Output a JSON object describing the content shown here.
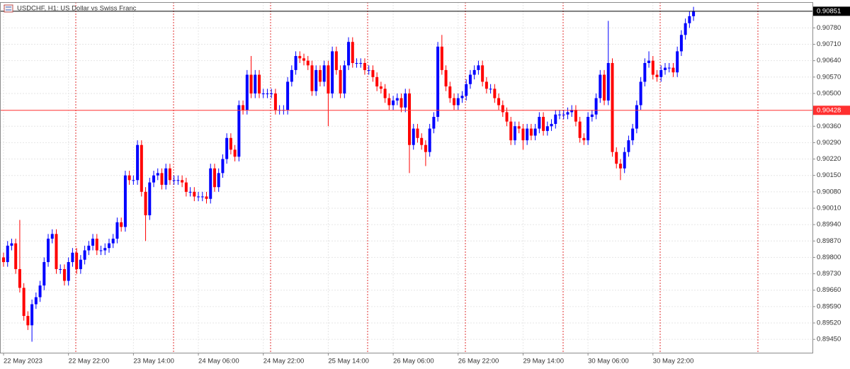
{
  "chart_data": {
    "type": "candlestick",
    "title": "USDCHF, H1:  US Dollar vs Swiss Franc",
    "categories": [
      "22 May 2023",
      null,
      null,
      null,
      null,
      null,
      null,
      null,
      null,
      null,
      null,
      null,
      null,
      null,
      null,
      null,
      "22 May 22:00",
      null,
      null,
      null,
      null,
      null,
      null,
      null,
      null,
      null,
      null,
      null,
      null,
      null,
      null,
      null,
      "23 May 14:00",
      null,
      null,
      null,
      null,
      null,
      null,
      null,
      null,
      null,
      null,
      null,
      null,
      null,
      null,
      null,
      "24 May 06:00",
      null,
      null,
      null,
      null,
      null,
      null,
      null,
      null,
      null,
      null,
      null,
      null,
      null,
      null,
      null,
      "24 May 22:00",
      null,
      null,
      null,
      null,
      null,
      null,
      null,
      null,
      null,
      null,
      null,
      null,
      null,
      null,
      null,
      "25 May 14:00",
      null,
      null,
      null,
      null,
      null,
      null,
      null,
      null,
      null,
      null,
      null,
      null,
      null,
      null,
      null,
      "26 May 06:00",
      null,
      null,
      null,
      null,
      null,
      null,
      null,
      null,
      null,
      null,
      null,
      null,
      null,
      null,
      null,
      "26 May 22:00",
      null,
      null,
      null,
      null,
      null,
      null,
      null,
      null,
      null,
      null,
      null,
      null,
      null,
      null,
      null,
      "29 May 14:00",
      null,
      null,
      null,
      null,
      null,
      null,
      null,
      null,
      null,
      null,
      null,
      null,
      null,
      null,
      null,
      "30 May 06:00",
      null,
      null,
      null,
      null,
      null,
      null,
      null,
      null,
      null,
      null,
      null,
      null,
      null,
      null,
      null,
      "30 May 22:00",
      null,
      null,
      null,
      null,
      null,
      null,
      null,
      null,
      null,
      null
    ],
    "open": [
      0.898,
      0.8978,
      0.8985,
      0.8986,
      0.8975,
      0.8967,
      0.8955,
      0.8951,
      0.896,
      0.8963,
      0.8968,
      0.8978,
      0.8988,
      0.899,
      0.8975,
      0.8975,
      0.897,
      0.8978,
      0.8982,
      0.8975,
      0.8979,
      0.8983,
      0.8985,
      0.8988,
      0.8983,
      0.8983,
      0.8984,
      0.8986,
      0.8988,
      0.8995,
      0.8993,
      0.9015,
      0.9013,
      0.9013,
      0.9028,
      0.9008,
      0.8998,
      0.9012,
      0.9015,
      0.9016,
      0.9011,
      0.9018,
      0.9013,
      0.9013,
      0.9013,
      0.9012,
      0.9008,
      0.9008,
      0.9006,
      0.9006,
      0.9006,
      0.9005,
      0.9018,
      0.901,
      0.9016,
      0.9022,
      0.9031,
      0.9026,
      0.9023,
      0.9045,
      0.9043,
      0.9058,
      0.905,
      0.9058,
      0.905,
      0.905,
      0.905,
      0.905,
      0.9043,
      0.9043,
      0.9043,
      0.9055,
      0.906,
      0.9066,
      0.9065,
      0.9064,
      0.9062,
      0.9051,
      0.906,
      0.9055,
      0.9062,
      0.905,
      0.9068,
      0.906,
      0.905,
      0.9062,
      0.9072,
      0.9063,
      0.9063,
      0.9063,
      0.906,
      0.906,
      0.9057,
      0.9053,
      0.9052,
      0.9048,
      0.9045,
      0.9047,
      0.9048,
      0.9044,
      0.905,
      0.9028,
      0.9035,
      0.9031,
      0.9028,
      0.9025,
      0.9035,
      0.904,
      0.907,
      0.906,
      0.9053,
      0.9048,
      0.9045,
      0.9048,
      0.9049,
      0.9054,
      0.9058,
      0.906,
      0.9062,
      0.9055,
      0.9052,
      0.9052,
      0.9048,
      0.9045,
      0.9042,
      0.9038,
      0.903,
      0.9036,
      0.9035,
      0.903,
      0.9035,
      0.9032,
      0.9035,
      0.904,
      0.9034,
      0.9036,
      0.9037,
      0.9041,
      0.9041,
      0.9041,
      0.9042,
      0.9043,
      0.9038,
      0.9031,
      0.903,
      0.904,
      0.9041,
      0.9048,
      0.9058,
      0.9047,
      0.9063,
      0.9025,
      0.902,
      0.9018,
      0.9025,
      0.903,
      0.9035,
      0.9045,
      0.9055,
      0.9063,
      0.9064,
      0.9058,
      0.9057,
      0.906,
      0.9061,
      0.9061,
      0.9059,
      0.9068,
      0.9075,
      0.908,
      0.9083
    ],
    "high": [
      0.8982,
      0.8987,
      0.8988,
      0.8988,
      0.8996,
      0.8969,
      0.8957,
      0.8962,
      0.8965,
      0.897,
      0.898,
      0.899,
      0.8992,
      0.8992,
      0.8977,
      0.8977,
      0.898,
      0.8984,
      0.8984,
      0.8981,
      0.8985,
      0.8987,
      0.899,
      0.899,
      0.8985,
      0.8986,
      0.8988,
      0.899,
      0.8997,
      0.8997,
      0.9017,
      0.9017,
      0.9015,
      0.903,
      0.903,
      0.901,
      0.9014,
      0.9017,
      0.9018,
      0.9018,
      0.902,
      0.902,
      0.9015,
      0.9015,
      0.9015,
      0.9014,
      0.901,
      0.901,
      0.9008,
      0.9008,
      0.9008,
      0.902,
      0.902,
      0.9018,
      0.9024,
      0.9033,
      0.9033,
      0.9028,
      0.9047,
      0.9047,
      0.906,
      0.9066,
      0.906,
      0.906,
      0.9052,
      0.9052,
      0.9052,
      0.9052,
      0.9045,
      0.9045,
      0.9057,
      0.9062,
      0.9068,
      0.9068,
      0.9067,
      0.9066,
      0.9064,
      0.9062,
      0.9062,
      0.9064,
      0.9064,
      0.907,
      0.907,
      0.9062,
      0.9064,
      0.9074,
      0.9074,
      0.9065,
      0.9065,
      0.9065,
      0.9062,
      0.9062,
      0.9059,
      0.9055,
      0.9054,
      0.905,
      0.9049,
      0.905,
      0.905,
      0.9052,
      0.9052,
      0.9037,
      0.9037,
      0.9033,
      0.903,
      0.9037,
      0.9042,
      0.9072,
      0.9075,
      0.9062,
      0.9055,
      0.905,
      0.905,
      0.9051,
      0.9056,
      0.906,
      0.9062,
      0.9064,
      0.9064,
      0.9057,
      0.9054,
      0.9054,
      0.905,
      0.9047,
      0.9044,
      0.904,
      0.9038,
      0.9038,
      0.9037,
      0.9037,
      0.9037,
      0.9037,
      0.9042,
      0.9042,
      0.9038,
      0.9039,
      0.9043,
      0.9043,
      0.9043,
      0.9044,
      0.9045,
      0.9045,
      0.904,
      0.9033,
      0.9042,
      0.9043,
      0.905,
      0.906,
      0.906,
      0.9081,
      0.9065,
      0.9027,
      0.9022,
      0.9027,
      0.9032,
      0.9037,
      0.9047,
      0.9057,
      0.9065,
      0.9068,
      0.9066,
      0.906,
      0.9062,
      0.9063,
      0.9063,
      0.9063,
      0.907,
      0.9077,
      0.9082,
      0.9085,
      0.9087
    ],
    "low": [
      0.8976,
      0.8976,
      0.8983,
      0.8973,
      0.8965,
      0.8953,
      0.8949,
      0.8944,
      0.8958,
      0.8961,
      0.8966,
      0.8976,
      0.8986,
      0.8973,
      0.8973,
      0.8968,
      0.8968,
      0.8976,
      0.8973,
      0.8973,
      0.8977,
      0.8981,
      0.8983,
      0.8981,
      0.8981,
      0.8981,
      0.8982,
      0.8984,
      0.8986,
      0.8991,
      0.8991,
      0.9011,
      0.9011,
      0.9011,
      0.9006,
      0.8987,
      0.8996,
      0.901,
      0.9013,
      0.9009,
      0.9009,
      0.9011,
      0.9011,
      0.9011,
      0.901,
      0.9006,
      0.9006,
      0.9004,
      0.9004,
      0.9004,
      0.9003,
      0.9003,
      0.9008,
      0.9008,
      0.9014,
      0.902,
      0.9024,
      0.9021,
      0.9021,
      0.9041,
      0.9041,
      0.9048,
      0.9048,
      0.9048,
      0.9048,
      0.9048,
      0.9048,
      0.9041,
      0.9041,
      0.9041,
      0.9041,
      0.9053,
      0.9058,
      0.9063,
      0.9062,
      0.906,
      0.9049,
      0.9049,
      0.9053,
      0.9053,
      0.9036,
      0.9048,
      0.9058,
      0.9048,
      0.9048,
      0.906,
      0.9061,
      0.9061,
      0.9061,
      0.9058,
      0.9058,
      0.9055,
      0.9051,
      0.905,
      0.9046,
      0.9043,
      0.9043,
      0.9045,
      0.9042,
      0.9042,
      0.9016,
      0.9026,
      0.9029,
      0.9026,
      0.9019,
      0.9023,
      0.9033,
      0.9038,
      0.9058,
      0.9051,
      0.9046,
      0.9043,
      0.9043,
      0.9046,
      0.9047,
      0.9052,
      0.9056,
      0.9058,
      0.9053,
      0.905,
      0.905,
      0.9046,
      0.9043,
      0.904,
      0.9036,
      0.9028,
      0.9028,
      0.9033,
      0.9026,
      0.9028,
      0.903,
      0.903,
      0.9033,
      0.9032,
      0.9032,
      0.9034,
      0.9035,
      0.9039,
      0.9039,
      0.9039,
      0.904,
      0.9036,
      0.9029,
      0.9028,
      0.9028,
      0.9038,
      0.9039,
      0.9046,
      0.9045,
      0.9045,
      0.9023,
      0.9018,
      0.9013,
      0.9016,
      0.9023,
      0.9028,
      0.9033,
      0.9043,
      0.9053,
      0.9061,
      0.9056,
      0.9055,
      0.9055,
      0.9058,
      0.9059,
      0.9057,
      0.9057,
      0.9066,
      0.9073,
      0.9078,
      0.9081
    ],
    "close": [
      0.8978,
      0.8985,
      0.8986,
      0.8975,
      0.8967,
      0.8955,
      0.8951,
      0.896,
      0.8963,
      0.8968,
      0.8978,
      0.8988,
      0.899,
      0.8975,
      0.8975,
      0.897,
      0.8978,
      0.8982,
      0.8975,
      0.8979,
      0.8983,
      0.8985,
      0.8988,
      0.8983,
      0.8983,
      0.8984,
      0.8986,
      0.8988,
      0.8995,
      0.8993,
      0.9015,
      0.9013,
      0.9013,
      0.9028,
      0.9008,
      0.8998,
      0.9012,
      0.9015,
      0.9016,
      0.9011,
      0.9018,
      0.9013,
      0.9013,
      0.9013,
      0.9012,
      0.9008,
      0.9008,
      0.9006,
      0.9006,
      0.9006,
      0.9005,
      0.9018,
      0.901,
      0.9016,
      0.9022,
      0.9031,
      0.9026,
      0.9023,
      0.9045,
      0.9043,
      0.9058,
      0.905,
      0.9058,
      0.905,
      0.905,
      0.905,
      0.905,
      0.9043,
      0.9043,
      0.9043,
      0.9055,
      0.906,
      0.9066,
      0.9065,
      0.9064,
      0.9062,
      0.9051,
      0.906,
      0.9055,
      0.9062,
      0.905,
      0.9068,
      0.906,
      0.905,
      0.9062,
      0.9072,
      0.9063,
      0.9063,
      0.9063,
      0.906,
      0.906,
      0.9057,
      0.9053,
      0.9052,
      0.9048,
      0.9045,
      0.9047,
      0.9048,
      0.9044,
      0.905,
      0.9028,
      0.9035,
      0.9031,
      0.9028,
      0.9025,
      0.9035,
      0.904,
      0.907,
      0.906,
      0.9053,
      0.9048,
      0.9045,
      0.9048,
      0.9049,
      0.9054,
      0.9058,
      0.906,
      0.9062,
      0.9055,
      0.9052,
      0.9052,
      0.9048,
      0.9045,
      0.9042,
      0.9038,
      0.903,
      0.9036,
      0.9035,
      0.903,
      0.9035,
      0.9032,
      0.9035,
      0.904,
      0.9034,
      0.9036,
      0.9037,
      0.9041,
      0.9041,
      0.9041,
      0.9042,
      0.9043,
      0.9038,
      0.9031,
      0.903,
      0.904,
      0.9041,
      0.9048,
      0.9058,
      0.9047,
      0.9063,
      0.9025,
      0.902,
      0.9018,
      0.9025,
      0.903,
      0.9035,
      0.9045,
      0.9055,
      0.9063,
      0.9064,
      0.9058,
      0.9057,
      0.906,
      0.9061,
      0.9061,
      0.9059,
      0.9068,
      0.9075,
      0.908,
      0.9083,
      0.9085
    ],
    "up_color": "#0000ff",
    "down_color": "#ff0000",
    "ylim": [
      0.89393,
      0.9089
    ],
    "yticks": [
      {
        "value": 0.8945,
        "label": "0.89450"
      },
      {
        "value": 0.8952,
        "label": "0.89520"
      },
      {
        "value": 0.8959,
        "label": "0.89590"
      },
      {
        "value": 0.8966,
        "label": "0.89660"
      },
      {
        "value": 0.8973,
        "label": "0.89730"
      },
      {
        "value": 0.898,
        "label": "0.89800"
      },
      {
        "value": 0.8987,
        "label": "0.89870"
      },
      {
        "value": 0.8994,
        "label": "0.89940"
      },
      {
        "value": 0.9001,
        "label": "0.90010"
      },
      {
        "value": 0.9008,
        "label": "0.90080"
      },
      {
        "value": 0.9015,
        "label": "0.90150"
      },
      {
        "value": 0.9022,
        "label": "0.90220"
      },
      {
        "value": 0.9029,
        "label": "0.90290"
      },
      {
        "value": 0.9036,
        "label": "0.90360"
      },
      {
        "value": 0.905,
        "label": "0.90500"
      },
      {
        "value": 0.9057,
        "label": "0.90570"
      },
      {
        "value": 0.9064,
        "label": "0.90640"
      },
      {
        "value": 0.9071,
        "label": "0.90710"
      },
      {
        "value": 0.9078,
        "label": "0.90780"
      }
    ],
    "grid": true,
    "last_price": 0.90851,
    "last_price_color": "#000000",
    "bid_price": 0.90428,
    "bid_price_color": "#ff3030"
  }
}
